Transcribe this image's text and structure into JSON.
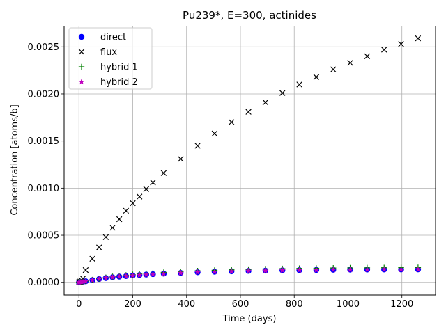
{
  "chart_data": {
    "type": "scatter",
    "title": "Pu239*, E=300, actinides",
    "xlabel": "Time (days)",
    "ylabel": "Concentration [atoms/b]",
    "xlim": [
      -55,
      1325
    ],
    "ylim": [
      -0.000135,
      0.00272
    ],
    "xticks": [
      0,
      200,
      400,
      600,
      800,
      1000,
      1200
    ],
    "xtick_labels": [
      "0",
      "200",
      "400",
      "600",
      "800",
      "1000",
      "1200"
    ],
    "yticks": [
      0.0,
      0.0005,
      0.001,
      0.0015,
      0.002,
      0.0025
    ],
    "ytick_labels": [
      "0.0000",
      "0.0005",
      "0.0010",
      "0.0015",
      "0.0020",
      "0.0025"
    ],
    "grid": true,
    "legend_position": "upper-left",
    "series": [
      {
        "name": "direct",
        "marker": "circle",
        "color": "#0000ff",
        "x": [
          0,
          5,
          10,
          15,
          25,
          50,
          75,
          100,
          125,
          150,
          175,
          200,
          225,
          250,
          275,
          315,
          378,
          441,
          504,
          567,
          630,
          693,
          756,
          819,
          882,
          945,
          1008,
          1071,
          1134,
          1197,
          1260
        ],
        "y": [
          0,
          2e-06,
          4e-06,
          6e-06,
          1.1e-05,
          2.3e-05,
          3.5e-05,
          4.5e-05,
          5.3e-05,
          6e-05,
          6.6e-05,
          7.2e-05,
          7.7e-05,
          8.2e-05,
          8.6e-05,
          9.2e-05,
          0.0001,
          0.000107,
          0.000112,
          0.000117,
          0.000121,
          0.000124,
          0.000127,
          0.000129,
          0.000131,
          0.000133,
          0.000134,
          0.000135,
          0.000136,
          0.000136,
          0.000137
        ]
      },
      {
        "name": "flux",
        "marker": "x",
        "color": "#000000",
        "x": [
          0,
          5,
          10,
          15,
          25,
          50,
          75,
          100,
          125,
          150,
          175,
          200,
          225,
          250,
          275,
          315,
          378,
          441,
          504,
          567,
          630,
          693,
          756,
          819,
          882,
          945,
          1008,
          1071,
          1134,
          1197,
          1260
        ],
        "y": [
          0,
          8e-06,
          2e-05,
          4e-05,
          0.00013,
          0.00025,
          0.00037,
          0.00048,
          0.00058,
          0.00067,
          0.00076,
          0.00084,
          0.00091,
          0.00099,
          0.00106,
          0.00116,
          0.00131,
          0.00145,
          0.00158,
          0.0017,
          0.00181,
          0.00191,
          0.00201,
          0.0021,
          0.00218,
          0.00226,
          0.00233,
          0.0024,
          0.00247,
          0.00253,
          0.00259
        ]
      },
      {
        "name": "hybrid 1",
        "marker": "plus",
        "color": "#008000",
        "x": [
          0,
          5,
          10,
          15,
          25,
          50,
          75,
          100,
          125,
          150,
          175,
          200,
          225,
          250,
          275,
          315,
          378,
          441,
          504,
          567,
          630,
          693,
          756,
          819,
          882,
          945,
          1008,
          1071,
          1134,
          1197,
          1260
        ],
        "y": [
          0,
          3e-06,
          5e-06,
          7e-06,
          1.3e-05,
          2.7e-05,
          4e-05,
          5.1e-05,
          6.1e-05,
          6.9e-05,
          7.6e-05,
          8.2e-05,
          8.8e-05,
          9.3e-05,
          9.8e-05,
          0.000105,
          0.000114,
          0.000122,
          0.000128,
          0.000133,
          0.000138,
          0.000142,
          0.000145,
          0.000148,
          0.00015,
          0.000152,
          0.000153,
          0.000154,
          0.000155,
          0.000156,
          0.000157
        ]
      },
      {
        "name": "hybrid 2",
        "marker": "star",
        "color": "#bf00bf",
        "x": [
          0,
          5,
          10,
          15,
          25,
          50,
          75,
          100,
          125,
          150,
          175,
          200,
          225,
          250,
          275,
          315,
          378,
          441,
          504,
          567,
          630,
          693,
          756,
          819,
          882,
          945,
          1008,
          1071,
          1134,
          1197,
          1260
        ],
        "y": [
          0,
          2e-06,
          4e-06,
          6e-06,
          1.1e-05,
          2.3e-05,
          3.5e-05,
          4.5e-05,
          5.3e-05,
          6e-05,
          6.6e-05,
          7.2e-05,
          7.7e-05,
          8.2e-05,
          8.6e-05,
          9.2e-05,
          0.0001,
          0.000107,
          0.000112,
          0.000117,
          0.000121,
          0.000124,
          0.000127,
          0.000129,
          0.000131,
          0.000133,
          0.000134,
          0.000135,
          0.000136,
          0.000136,
          0.000137
        ]
      }
    ]
  }
}
